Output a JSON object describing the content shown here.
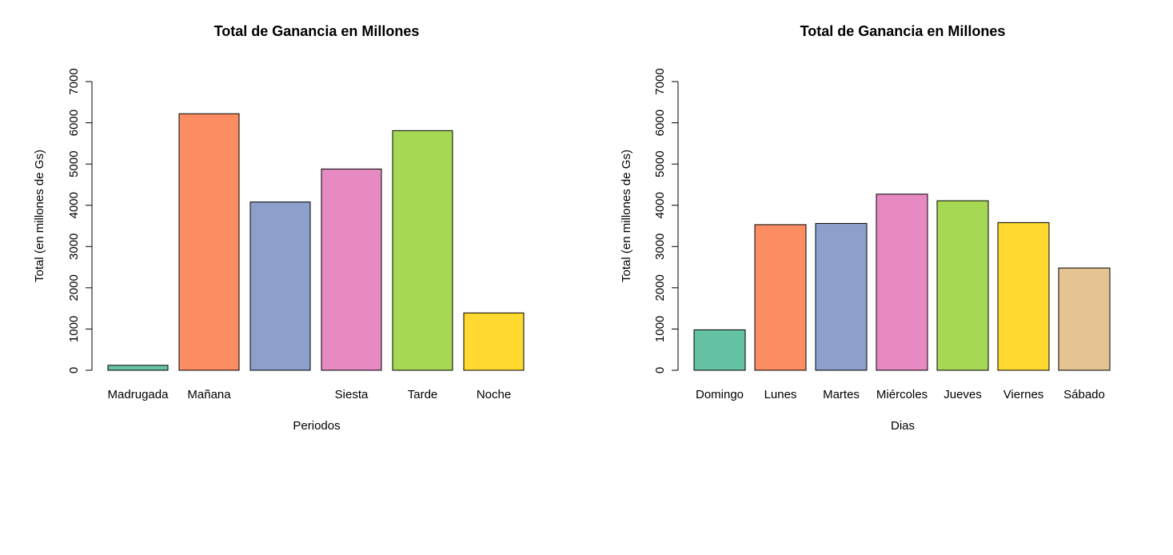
{
  "chart_data": [
    {
      "type": "bar",
      "title": "Total de Ganancia en Millones",
      "xlabel": "Periodos",
      "ylabel": "Total (en millones de Gs)",
      "ylim": [
        0,
        7000
      ],
      "yticks": [
        "0",
        "1000",
        "2000",
        "3000",
        "4000",
        "5000",
        "6000",
        "7000"
      ],
      "categories": [
        "Madrugada",
        "Mañana",
        "",
        "Siesta",
        "Tarde",
        "Noche"
      ],
      "values": [
        120,
        6220,
        4080,
        4880,
        5810,
        1390
      ],
      "colors": [
        "#66c2a5",
        "#fc8d62",
        "#8da0cb",
        "#e78ac3",
        "#a6d854",
        "#ffd92f"
      ],
      "grid": false,
      "legend": "none"
    },
    {
      "type": "bar",
      "title": "Total de Ganancia en Millones",
      "xlabel": "Dias",
      "ylabel": "Total (en millones de Gs)",
      "ylim": [
        0,
        7000
      ],
      "yticks": [
        "0",
        "1000",
        "2000",
        "3000",
        "4000",
        "5000",
        "6000",
        "7000"
      ],
      "categories": [
        "Domingo",
        "Lunes",
        "Martes",
        "Miércoles",
        "Jueves",
        "Viernes",
        "Sábado"
      ],
      "values": [
        980,
        3530,
        3560,
        4270,
        4110,
        3580,
        2480
      ],
      "colors": [
        "#66c2a5",
        "#fc8d62",
        "#8da0cb",
        "#e78ac3",
        "#a6d854",
        "#ffd92f",
        "#e5c494"
      ],
      "grid": false,
      "legend": "none"
    }
  ]
}
